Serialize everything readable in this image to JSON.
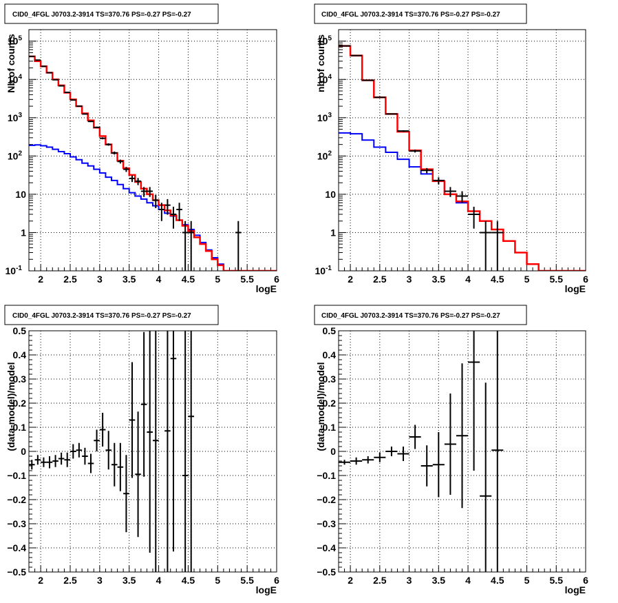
{
  "colors": {
    "data": "#000000",
    "total_model": "#ff0000",
    "component_model": "#0000ff",
    "grid": "#000000"
  },
  "chart_data": [
    {
      "type": "line",
      "title": "CID0_4FGL J0703.2-3914 TS=370.76 PS=-0.27 PS=-0.27",
      "xlabel": "logE",
      "ylabel": "Nb of counts",
      "ylog": true,
      "xlim": [
        1.8,
        6.0
      ],
      "ylim": [
        0.1,
        200000
      ],
      "grid": true,
      "x_ticks": [
        "2",
        "2.5",
        "3",
        "3.5",
        "4",
        "4.5",
        "5",
        "5.5",
        "6"
      ],
      "y_ticks": [
        "10^-1",
        "1",
        "10",
        "10^2",
        "10^3",
        "10^4",
        "10^5"
      ],
      "bin_edges": [
        1.8,
        1.9,
        2.0,
        2.1,
        2.2,
        2.3,
        2.4,
        2.5,
        2.6,
        2.7,
        2.8,
        2.9,
        3.0,
        3.1,
        3.2,
        3.3,
        3.4,
        3.5,
        3.6,
        3.7,
        3.8,
        3.9,
        4.0,
        4.1,
        4.2,
        4.3,
        4.4,
        4.5,
        4.6,
        4.7,
        4.8,
        4.9,
        5.0,
        5.1,
        5.2,
        5.3,
        5.4,
        5.5,
        5.6,
        5.7,
        5.8,
        5.9,
        6.0
      ],
      "series": [
        {
          "values": [
            40000,
            30000,
            22000,
            15000,
            10000,
            7000,
            4500,
            3000,
            2000,
            1300,
            850,
            550,
            330,
            200,
            120,
            75,
            48,
            32,
            21,
            14,
            10,
            7,
            5.2,
            3.8,
            2.8,
            2.1,
            1.5,
            1.1,
            0.75,
            0.5,
            0.33,
            0.2,
            0.14,
            0.1,
            0.1,
            0.1,
            0.1,
            0.1,
            0.1,
            0.1,
            0.1,
            0.1
          ]
        },
        {
          "values": [
            190,
            195,
            185,
            170,
            150,
            130,
            115,
            95,
            80,
            65,
            55,
            45,
            36,
            28,
            23,
            18,
            14,
            11,
            9,
            7.5,
            6,
            5,
            4,
            3.2,
            2.7,
            2.1,
            1.6,
            1.2,
            0.85,
            0.55,
            0.35,
            0.22,
            0.15,
            0.1,
            0.1,
            0.1,
            0.1,
            0.1,
            0.1,
            0.1,
            0.1,
            0.1
          ]
        },
        {
          "points": [
            [
              1.85,
              40000,
              0
            ],
            [
              1.95,
              32000,
              0
            ],
            [
              2.05,
              22000,
              0
            ],
            [
              2.15,
              15000,
              0
            ],
            [
              2.25,
              9800,
              0
            ],
            [
              2.35,
              6800,
              0
            ],
            [
              2.45,
              4600,
              0
            ],
            [
              2.55,
              2900,
              0
            ],
            [
              2.65,
              2000,
              0
            ],
            [
              2.75,
              1250,
              0
            ],
            [
              2.85,
              800,
              0
            ],
            [
              2.95,
              560,
              0
            ],
            [
              3.05,
              290,
              0
            ],
            [
              3.15,
              200,
              0
            ],
            [
              3.25,
              120,
              0
            ],
            [
              3.35,
              72,
              0
            ],
            [
              3.45,
              45,
              0
            ],
            [
              3.55,
              26,
              0
            ],
            [
              3.65,
              22,
              0
            ],
            [
              3.75,
              12,
              0
            ],
            [
              3.85,
              12,
              0
            ],
            [
              3.95,
              7,
              0
            ],
            [
              4.05,
              4,
              0
            ],
            [
              4.15,
              5.2,
              0
            ],
            [
              4.25,
              3,
              0
            ],
            [
              4.35,
              4,
              0
            ],
            [
              4.45,
              1,
              0
            ],
            [
              4.55,
              1,
              0
            ],
            [
              5.35,
              1,
              0
            ]
          ]
        }
      ]
    },
    {
      "type": "line",
      "title": "CID0_4FGL J0703.2-3914 TS=370.76 PS=-0.27 PS=-0.27",
      "xlabel": "logE",
      "ylabel": "nb of counts",
      "ylog": true,
      "xlim": [
        1.8,
        6.0
      ],
      "ylim": [
        0.1,
        200000
      ],
      "grid": true,
      "x_ticks": [
        "2",
        "2.5",
        "3",
        "3.5",
        "4",
        "4.5",
        "5",
        "5.5",
        "6"
      ],
      "y_ticks": [
        "10^-1",
        "1",
        "10",
        "10^2",
        "10^3",
        "10^4",
        "10^5"
      ],
      "bin_edges": [
        1.8,
        2.0,
        2.2,
        2.4,
        2.6,
        2.8,
        3.0,
        3.2,
        3.4,
        3.6,
        3.8,
        4.0,
        4.2,
        4.4,
        4.6,
        4.8,
        5.0,
        5.2,
        5.4,
        5.6,
        5.8,
        6.0
      ],
      "series": [
        {
          "values": [
            75000,
            42000,
            9500,
            3400,
            1250,
            430,
            140,
            45,
            22,
            10,
            6.5,
            3.6,
            2.0,
            1.2,
            0.6,
            0.3,
            0.15,
            0.1,
            0.1,
            0.1,
            0.1
          ]
        },
        {
          "values": [
            400,
            380,
            260,
            170,
            125,
            82,
            52,
            34,
            22,
            10,
            6.0,
            3.6,
            2.0,
            1.2,
            0.6,
            0.3,
            0.15,
            0.1,
            0.1,
            0.1,
            0.1
          ]
        },
        {
          "points": [
            [
              1.9,
              75000,
              0
            ],
            [
              2.1,
              42000,
              0
            ],
            [
              2.3,
              9500,
              0
            ],
            [
              2.5,
              3400,
              0
            ],
            [
              2.7,
              1250,
              0
            ],
            [
              2.9,
              450,
              0
            ],
            [
              3.1,
              135,
              0
            ],
            [
              3.3,
              42,
              0
            ],
            [
              3.5,
              23,
              0
            ],
            [
              3.7,
              12,
              0
            ],
            [
              3.9,
              9,
              0
            ],
            [
              4.1,
              3,
              0
            ],
            [
              4.3,
              1,
              0
            ],
            [
              4.5,
              1,
              0
            ]
          ]
        }
      ]
    },
    {
      "type": "scatter",
      "title": "CID0_4FGL J0703.2-3914 TS=370.76 PS=-0.27 PS=-0.27",
      "xlabel": "logE",
      "ylabel": "(data-model)/model",
      "xlim": [
        1.8,
        6.0
      ],
      "ylim": [
        -0.5,
        0.5
      ],
      "grid": true,
      "x_ticks": [
        "2",
        "2.5",
        "3",
        "3.5",
        "4",
        "4.5",
        "5",
        "5.5",
        "6"
      ],
      "y_ticks": [
        "-0.5",
        "-0.4",
        "-0.3",
        "-0.2",
        "-0.1",
        "0",
        "0.1",
        "0.2",
        "0.3",
        "0.4",
        "0.5"
      ],
      "series": [
        {
          "points": [
            [
              1.85,
              -0.055,
              0.02,
              0.05
            ],
            [
              1.95,
              -0.035,
              0.02,
              0.05
            ],
            [
              2.05,
              -0.045,
              0.02,
              0.05
            ],
            [
              2.15,
              -0.045,
              0.025,
              0.05
            ],
            [
              2.25,
              -0.04,
              0.025,
              0.05
            ],
            [
              2.35,
              -0.03,
              0.025,
              0.05
            ],
            [
              2.45,
              -0.035,
              0.03,
              0.05
            ],
            [
              2.55,
              0.0,
              0.03,
              0.05
            ],
            [
              2.65,
              0.005,
              0.03,
              0.05
            ],
            [
              2.75,
              -0.02,
              0.035,
              0.05
            ],
            [
              2.85,
              -0.05,
              0.04,
              0.05
            ],
            [
              2.95,
              0.045,
              0.045,
              0.05
            ],
            [
              3.05,
              0.09,
              0.07,
              0.05
            ],
            [
              3.15,
              0.005,
              0.08,
              0.05
            ],
            [
              3.25,
              -0.055,
              0.09,
              0.05
            ],
            [
              3.35,
              -0.065,
              0.1,
              0.05
            ],
            [
              3.45,
              -0.175,
              0.16,
              0.05
            ],
            [
              3.55,
              0.13,
              0.24,
              0.05
            ],
            [
              3.65,
              -0.095,
              0.26,
              0.05
            ],
            [
              3.75,
              0.195,
              0.3,
              0.05
            ],
            [
              3.85,
              0.08,
              0.5,
              0.05
            ],
            [
              3.95,
              0.045,
              0.55,
              0.05
            ],
            [
              4.15,
              0.085,
              0.6,
              0.05
            ],
            [
              4.25,
              0.385,
              0.8,
              0.05
            ],
            [
              4.45,
              -0.1,
              0.9,
              0.05
            ],
            [
              4.55,
              0.145,
              1.0,
              0.05
            ]
          ]
        }
      ]
    },
    {
      "type": "scatter",
      "title": "CID0_4FGL J0703.2-3914 TS=370.76 PS=-0.27 PS=-0.27",
      "xlabel": "logE",
      "ylabel": "(data-model)/model",
      "xlim": [
        1.8,
        6.0
      ],
      "ylim": [
        -0.5,
        0.5
      ],
      "grid": true,
      "x_ticks": [
        "2",
        "2.5",
        "3",
        "3.5",
        "4",
        "4.5",
        "5",
        "5.5",
        "6"
      ],
      "y_ticks": [
        "-0.5",
        "-0.4",
        "-0.3",
        "-0.2",
        "-0.1",
        "0",
        "0.1",
        "0.2",
        "0.3",
        "0.4",
        "0.5"
      ],
      "series": [
        {
          "points": [
            [
              1.9,
              -0.045,
              0.01,
              0.1
            ],
            [
              2.1,
              -0.04,
              0.015,
              0.1
            ],
            [
              2.3,
              -0.035,
              0.015,
              0.1
            ],
            [
              2.5,
              -0.025,
              0.02,
              0.1
            ],
            [
              2.7,
              0.0,
              0.02,
              0.1
            ],
            [
              2.9,
              -0.01,
              0.03,
              0.1
            ],
            [
              3.1,
              0.06,
              0.05,
              0.1
            ],
            [
              3.3,
              -0.06,
              0.085,
              0.1
            ],
            [
              3.5,
              -0.055,
              0.135,
              0.1
            ],
            [
              3.7,
              0.03,
              0.21,
              0.1
            ],
            [
              3.9,
              0.065,
              0.3,
              0.1
            ],
            [
              4.1,
              0.37,
              0.45,
              0.1
            ],
            [
              4.3,
              -0.185,
              0.47,
              0.1
            ],
            [
              4.5,
              0.005,
              0.9,
              0.1
            ]
          ]
        }
      ]
    }
  ]
}
